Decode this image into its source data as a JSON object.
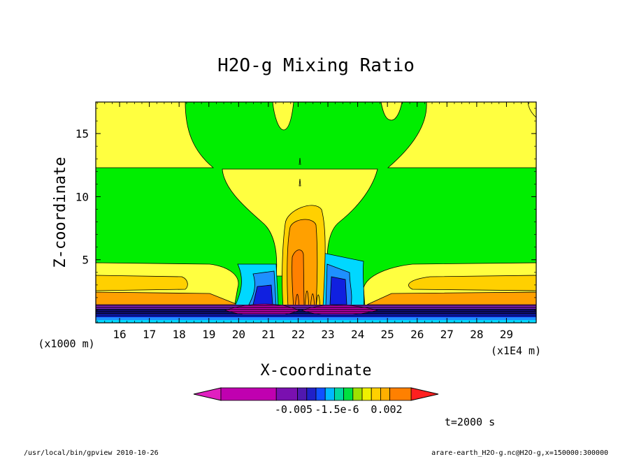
{
  "chart_data": {
    "type": "heatmap",
    "title": "H2O-g Mixing Ratio",
    "xlabel": "X-coordinate",
    "ylabel": "Z-coordinate",
    "x_scale_note": "(x1E4 m)",
    "y_scale_note": "(x1000 m)",
    "xlim": [
      15.2,
      30.0
    ],
    "ylim": [
      0,
      17.5
    ],
    "x_ticks": [
      16,
      17,
      18,
      19,
      20,
      21,
      22,
      23,
      24,
      25,
      26,
      27,
      28,
      29
    ],
    "y_ticks": [
      5,
      10,
      15
    ],
    "grid": false,
    "colorbar": {
      "colors": [
        "#e020c0",
        "#c000b0",
        "#7a10b0",
        "#5018b0",
        "#2020c8",
        "#1050ff",
        "#00b8ff",
        "#00d8a0",
        "#00e040",
        "#a0e000",
        "#f0f000",
        "#ffd000",
        "#ffb000",
        "#ff8000",
        "#ff2020"
      ],
      "tick_labels": [
        "-0.005",
        "-1.5e-6",
        "0.002"
      ]
    },
    "time_label": "t=2000 s"
  },
  "footer": {
    "left": "/usr/local/bin/gpview  2010-10-26",
    "right": "arare-earth_H2O-g.nc@H2O-g,x=150000:300000"
  },
  "colors": {
    "green": "#00ee00",
    "yellow": "#ffff40",
    "light_orange": "#ffd000",
    "orange": "#ffa000",
    "dark_orange": "#ff8000",
    "cyan": "#00d8ff",
    "blue_light": "#1e90ff",
    "blue": "#1020e0",
    "navy": "#101080",
    "purple": "#8020c0",
    "magenta": "#c000b0"
  }
}
